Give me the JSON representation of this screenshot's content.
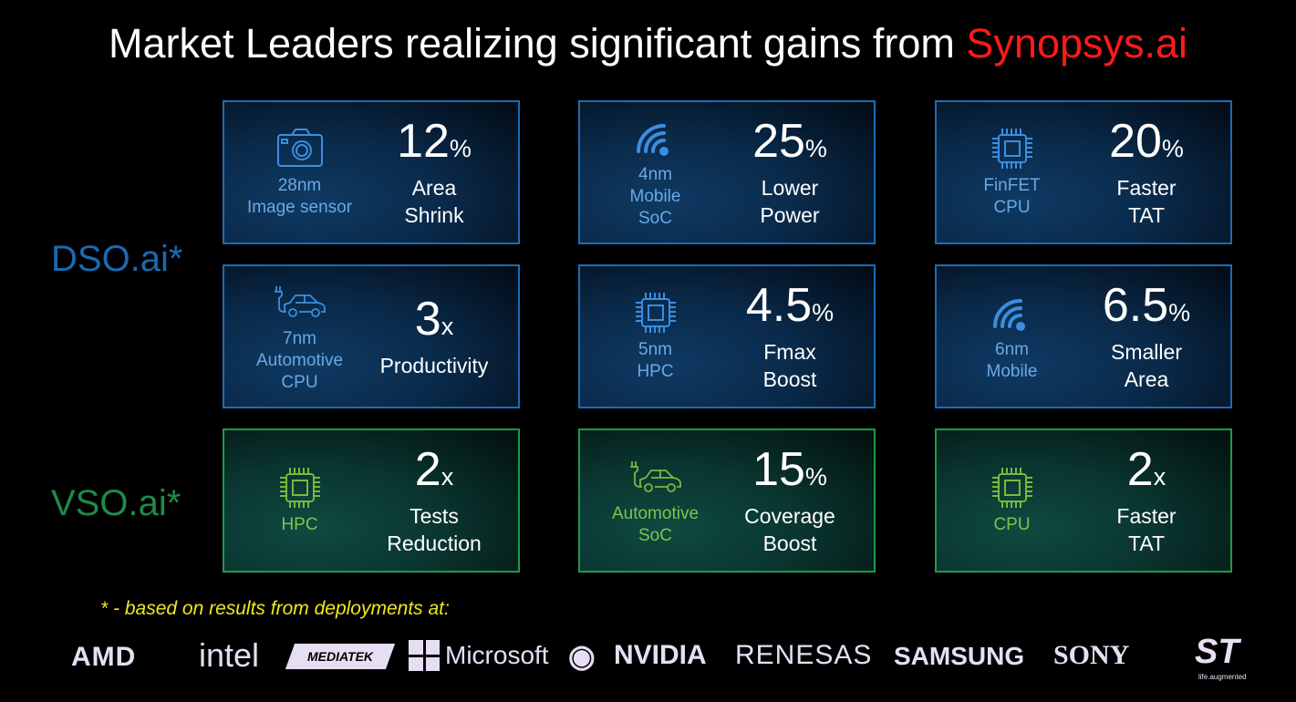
{
  "title": {
    "prefix": "Market Leaders realizing significant gains from ",
    "brand": "Synopsys.ai",
    "brand_color": "#ff1a1a"
  },
  "groups": [
    {
      "label": "DSO.ai*",
      "color": "#1a6ab4"
    },
    {
      "label": "VSO.ai*",
      "color": "#1e8a48"
    }
  ],
  "cards": [
    {
      "theme": "blue",
      "icon": "camera-icon",
      "label": [
        "28nm",
        "Image sensor"
      ],
      "value": "12",
      "unit": "%",
      "desc": [
        "Area",
        "Shrink"
      ]
    },
    {
      "theme": "blue",
      "icon": "wifi-icon",
      "label": [
        "4nm",
        "Mobile",
        "SoC"
      ],
      "value": "25",
      "unit": "%",
      "desc": [
        "Lower",
        "Power"
      ]
    },
    {
      "theme": "blue",
      "icon": "chip-icon",
      "label": [
        "FinFET",
        "CPU"
      ],
      "value": "20",
      "unit": "%",
      "desc": [
        "Faster",
        "TAT"
      ]
    },
    {
      "theme": "blue",
      "icon": "electric-car-icon",
      "label": [
        "7nm",
        "Automotive",
        "CPU"
      ],
      "value": "3",
      "unit": "x",
      "desc": [
        "Productivity"
      ]
    },
    {
      "theme": "blue",
      "icon": "chip-icon",
      "label": [
        "5nm",
        "HPC"
      ],
      "value": "4.5",
      "unit": "%",
      "desc": [
        "Fmax",
        "Boost"
      ]
    },
    {
      "theme": "blue",
      "icon": "wifi-icon",
      "label": [
        "6nm",
        "Mobile"
      ],
      "value": "6.5",
      "unit": "%",
      "desc": [
        "Smaller",
        "Area"
      ]
    },
    {
      "theme": "green",
      "icon": "chip-icon",
      "label": [
        "HPC"
      ],
      "value": "2",
      "unit": "x",
      "desc": [
        "Tests",
        "Reduction"
      ]
    },
    {
      "theme": "green",
      "icon": "electric-car-icon",
      "label": [
        "Automotive",
        "SoC"
      ],
      "value": "15",
      "unit": "%",
      "desc": [
        "Coverage",
        "Boost"
      ]
    },
    {
      "theme": "green",
      "icon": "chip-icon",
      "label": [
        "CPU"
      ],
      "value": "2",
      "unit": "x",
      "desc": [
        "Faster",
        "TAT"
      ]
    }
  ],
  "footnote": "* - based on results from deployments at:",
  "logos": [
    "AMD",
    "intel",
    "MEDIATEK",
    "Microsoft",
    "NVIDIA",
    "RENESAS",
    "SAMSUNG",
    "SONY",
    "ST",
    "life.augmented"
  ]
}
